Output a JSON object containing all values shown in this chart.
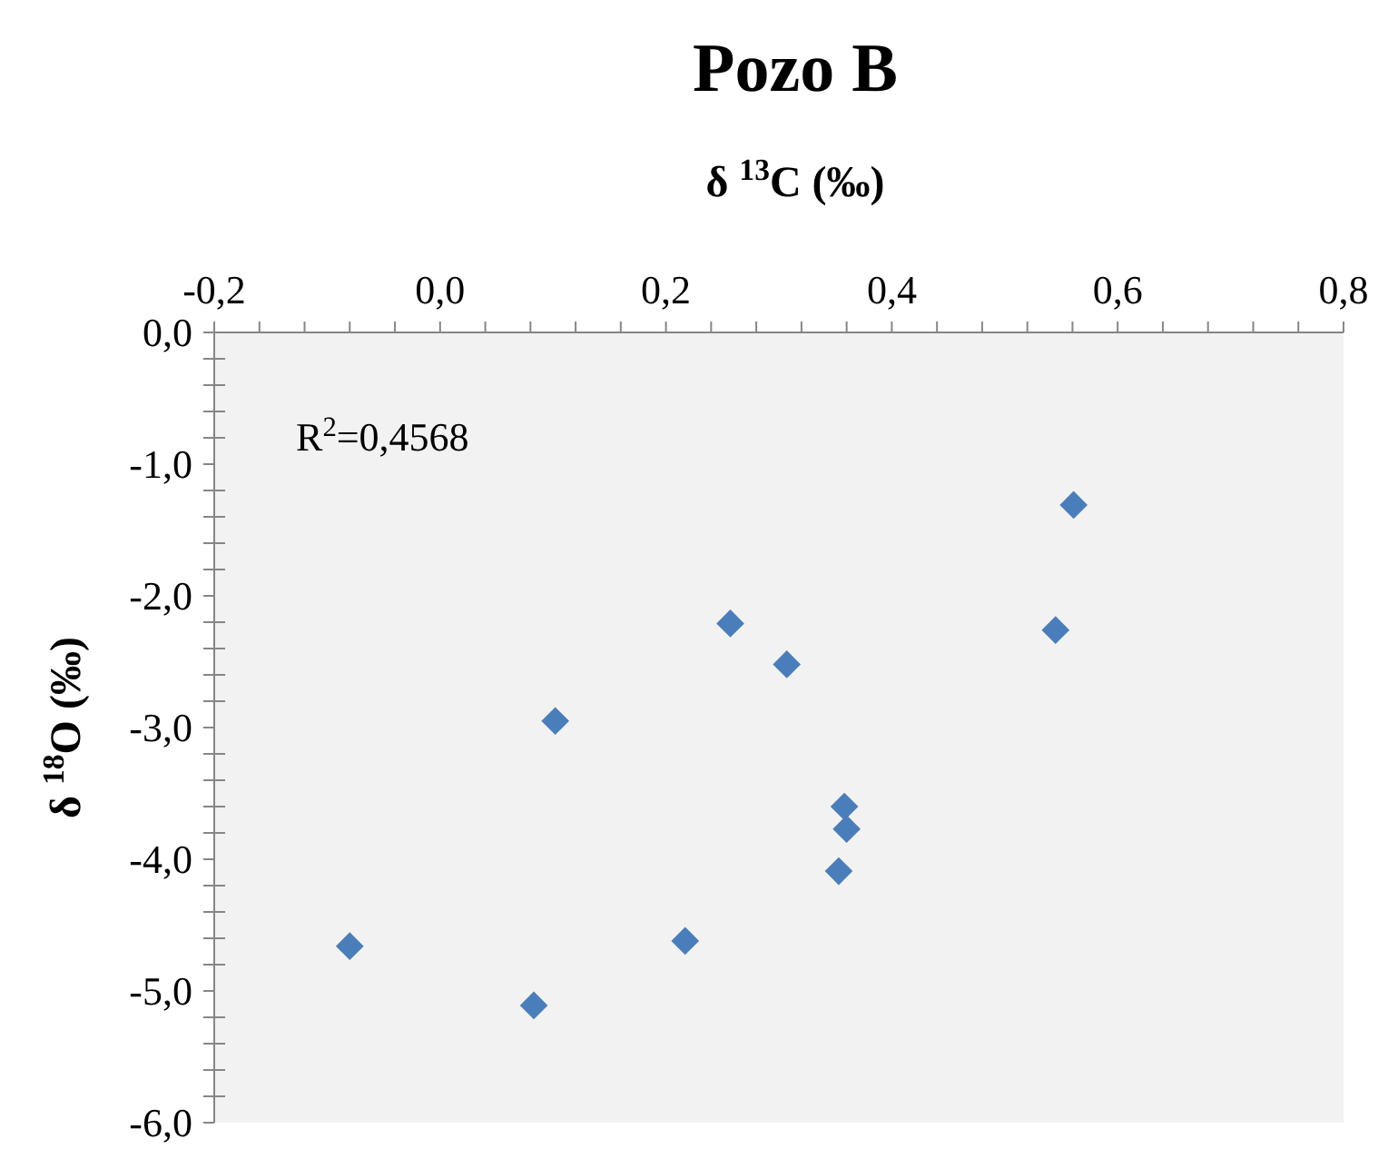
{
  "chart_data": {
    "type": "scatter",
    "title": "Pozo B",
    "xlabel": "δ $^{13}$C (‰)",
    "ylabel": "δ $^{18}$O (‰)",
    "annotations": [
      "R$^{2}$=0,4568"
    ],
    "series": [
      {
        "color": "#4a7ebb",
        "x": [
          -0.08,
          0.083,
          0.102,
          0.217,
          0.257,
          0.307,
          0.358,
          0.36,
          0.353,
          0.545,
          0.561
        ],
        "values": [
          -4.66,
          -5.11,
          -2.95,
          -4.62,
          -2.21,
          -2.52,
          -3.6,
          -3.77,
          -4.09,
          -2.26,
          -1.31
        ]
      }
    ],
    "marker": "diamond",
    "grid": false,
    "xlim": [
      -0.2,
      0.8
    ],
    "xticks": [
      {
        "value": -0.2,
        "label": "-0,2"
      },
      {
        "value": -0.16,
        "label": null
      },
      {
        "value": -0.12,
        "label": null
      },
      {
        "value": -0.08,
        "label": null
      },
      {
        "value": -0.04,
        "label": null
      },
      {
        "value": 0,
        "label": "0,0"
      },
      {
        "value": 0.04,
        "label": null
      },
      {
        "value": 0.08,
        "label": null
      },
      {
        "value": 0.12,
        "label": null
      },
      {
        "value": 0.16,
        "label": null
      },
      {
        "value": 0.2,
        "label": "0,2"
      },
      {
        "value": 0.24,
        "label": null
      },
      {
        "value": 0.28,
        "label": null
      },
      {
        "value": 0.32,
        "label": null
      },
      {
        "value": 0.36,
        "label": null
      },
      {
        "value": 0.4,
        "label": "0,4"
      },
      {
        "value": 0.44,
        "label": null
      },
      {
        "value": 0.48,
        "label": null
      },
      {
        "value": 0.52,
        "label": null
      },
      {
        "value": 0.56,
        "label": null
      },
      {
        "value": 0.6,
        "label": "0,6"
      },
      {
        "value": 0.64,
        "label": null
      },
      {
        "value": 0.68,
        "label": null
      },
      {
        "value": 0.72,
        "label": null
      },
      {
        "value": 0.76,
        "label": null
      },
      {
        "value": 0.8,
        "label": "0,8"
      }
    ],
    "ylim": [
      -6,
      0
    ],
    "yticks": [
      {
        "value": 0,
        "label": "0,0"
      },
      {
        "value": -0.2,
        "label": null
      },
      {
        "value": -0.4,
        "label": null
      },
      {
        "value": -0.6,
        "label": null
      },
      {
        "value": -0.8,
        "label": null
      },
      {
        "value": -1,
        "label": "-1,0"
      },
      {
        "value": -1.2,
        "label": null
      },
      {
        "value": -1.4,
        "label": null
      },
      {
        "value": -1.6,
        "label": null
      },
      {
        "value": -1.8,
        "label": null
      },
      {
        "value": -2,
        "label": "-2,0"
      },
      {
        "value": -2.2,
        "label": null
      },
      {
        "value": -2.4,
        "label": null
      },
      {
        "value": -2.6,
        "label": null
      },
      {
        "value": -2.8,
        "label": null
      },
      {
        "value": -3,
        "label": "-3,0"
      },
      {
        "value": -3.2,
        "label": null
      },
      {
        "value": -3.4,
        "label": null
      },
      {
        "value": -3.6,
        "label": null
      },
      {
        "value": -3.8,
        "label": null
      },
      {
        "value": -4,
        "label": "-4,0"
      },
      {
        "value": -4.2,
        "label": null
      },
      {
        "value": -4.4,
        "label": null
      },
      {
        "value": -4.6,
        "label": null
      },
      {
        "value": -4.8,
        "label": null
      },
      {
        "value": -5,
        "label": "-5,0"
      },
      {
        "value": -5.2,
        "label": null
      },
      {
        "value": -5.4,
        "label": null
      },
      {
        "value": -5.6,
        "label": null
      },
      {
        "value": -5.8,
        "label": null
      },
      {
        "value": -6,
        "label": "-6,0"
      }
    ]
  }
}
